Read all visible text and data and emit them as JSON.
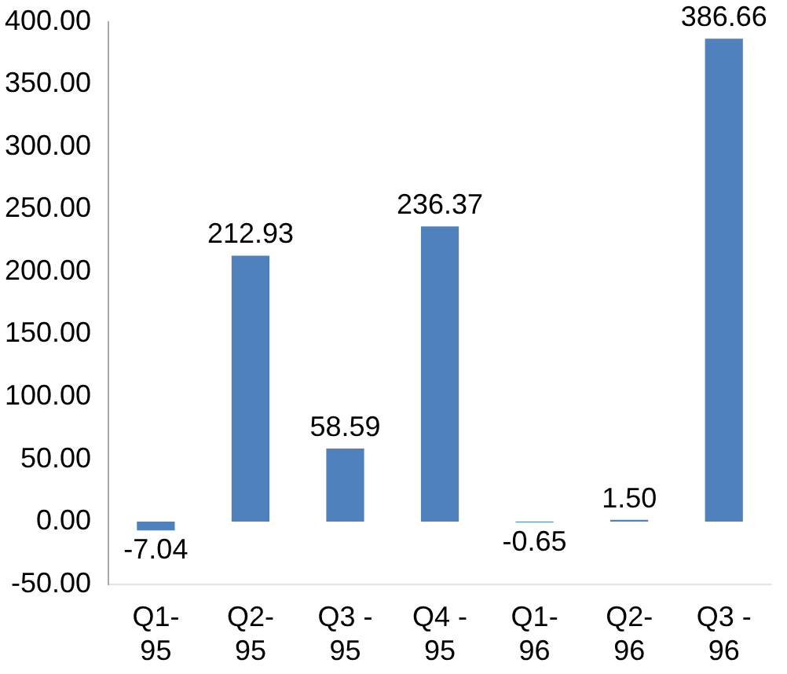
{
  "chart_data": {
    "type": "bar",
    "categories": [
      "Q1-95",
      "Q2-95",
      "Q3 - 95",
      "Q4 - 95",
      "Q1-96",
      "Q2-96",
      "Q3 - 96"
    ],
    "values": [
      -7.04,
      212.93,
      58.59,
      236.37,
      -0.65,
      1.5,
      386.66
    ],
    "color": "#4f81bd",
    "ylim": [
      -50,
      400
    ],
    "yticks": [
      {
        "value": -50,
        "label": "-50.00"
      },
      {
        "value": 0,
        "label": "0.00"
      },
      {
        "value": 50,
        "label": "50.00"
      },
      {
        "value": 100,
        "label": "100.00"
      },
      {
        "value": 150,
        "label": "150.00"
      },
      {
        "value": 200,
        "label": "200.00"
      },
      {
        "value": 250,
        "label": "250.00"
      },
      {
        "value": 300,
        "label": "300.00"
      },
      {
        "value": 350,
        "label": "350.00"
      },
      {
        "value": 400,
        "label": "400.00"
      }
    ],
    "value_labels": [
      "-7.04",
      "212.93",
      "58.59",
      "236.37",
      "-0.65",
      "1.50",
      "386.66"
    ],
    "grid": false,
    "legend": false
  }
}
